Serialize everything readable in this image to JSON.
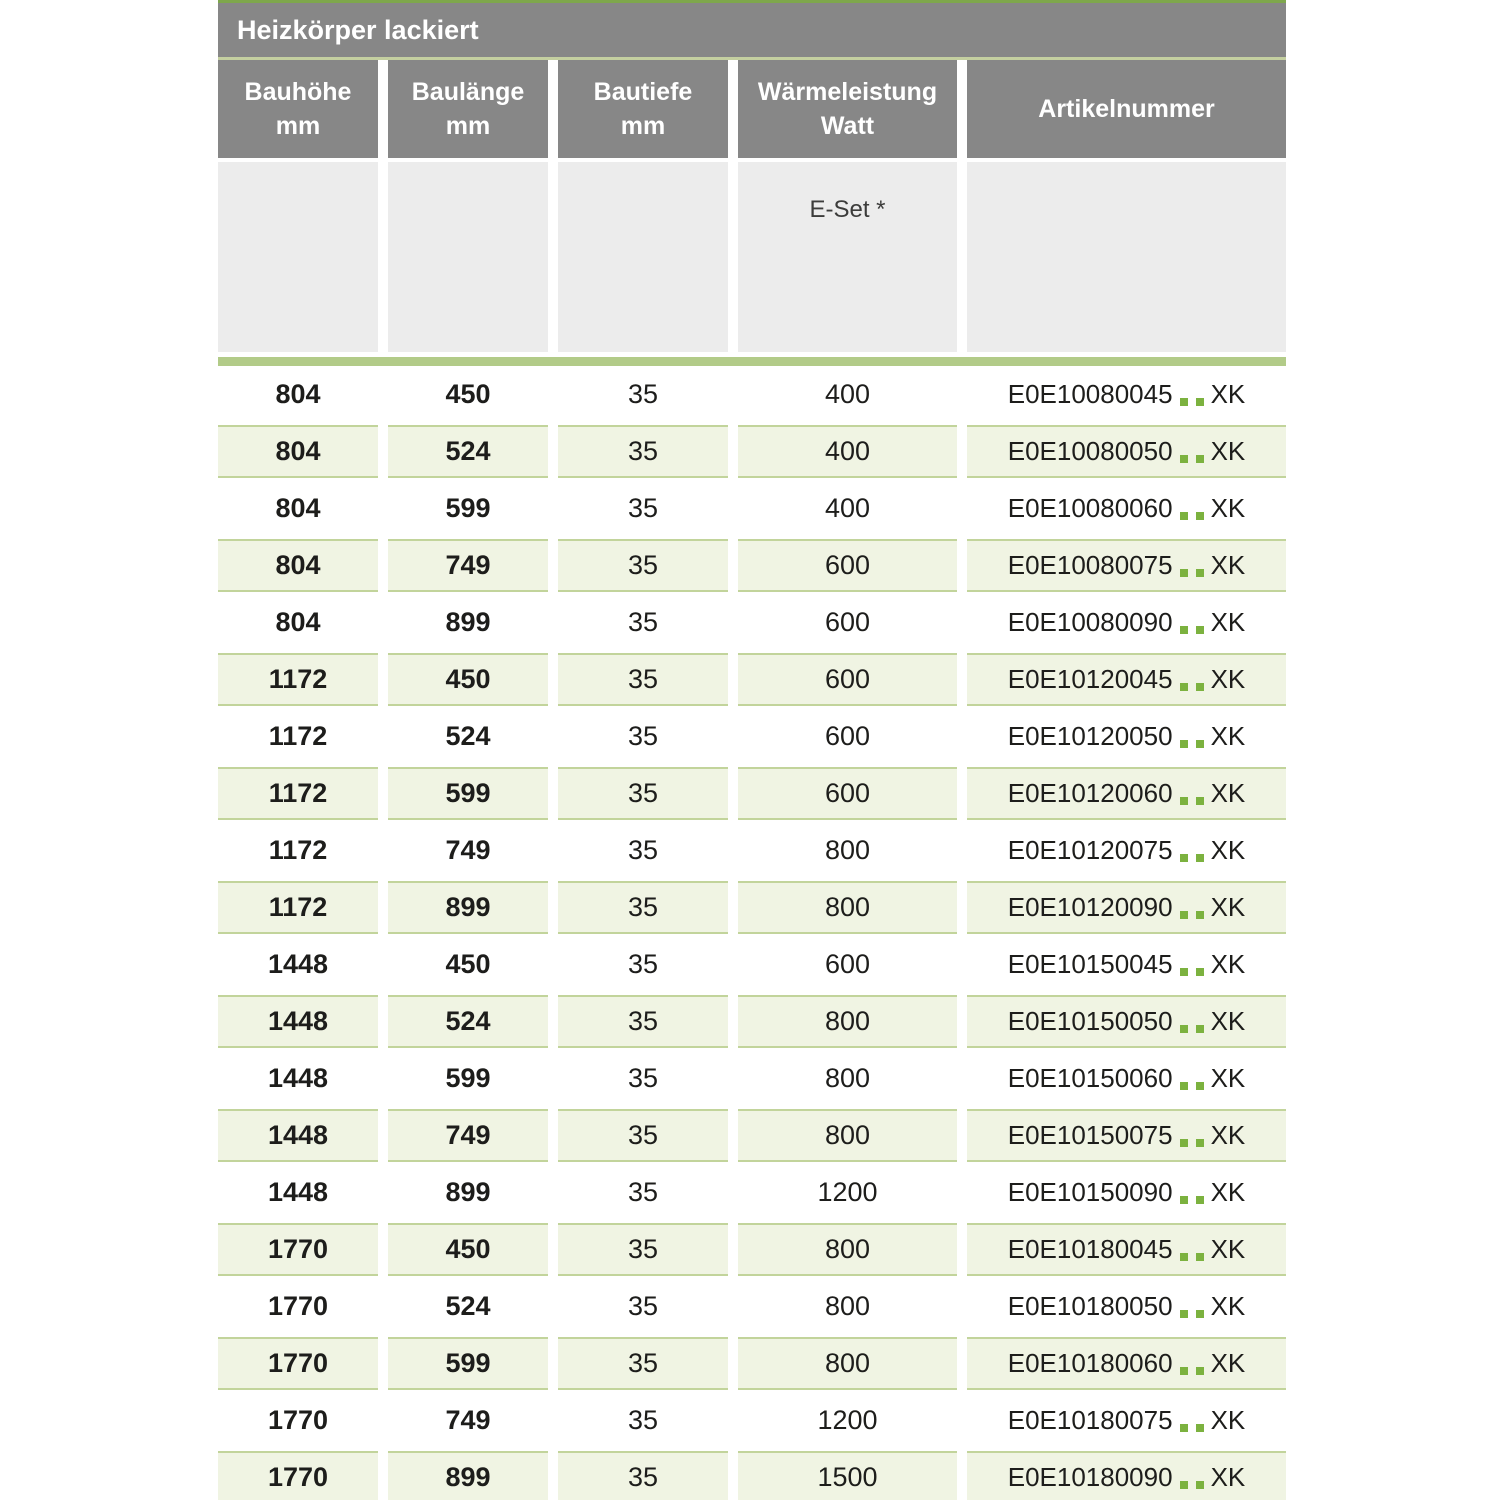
{
  "table": {
    "title": "Heizkörper lackiert",
    "columns": [
      {
        "id": "bauhoehe",
        "line1": "Bauhöhe",
        "line2": "mm"
      },
      {
        "id": "baulaenge",
        "line1": "Baulänge",
        "line2": "mm"
      },
      {
        "id": "bautiefe",
        "line1": "Bautiefe",
        "line2": "mm"
      },
      {
        "id": "waermeleistung",
        "line1": "Wärmeleistung",
        "line2": "Watt"
      },
      {
        "id": "artikelnummer",
        "line1": "Artikelnummer",
        "line2": ""
      }
    ],
    "subheader": {
      "note": "E-Set *"
    },
    "article_dots": "..",
    "rows": [
      {
        "bauhoehe": "804",
        "baulaenge": "450",
        "bautiefe": "35",
        "watt": "400",
        "artikel_prefix": "E0E10080045",
        "artikel_suffix": "XK"
      },
      {
        "bauhoehe": "804",
        "baulaenge": "524",
        "bautiefe": "35",
        "watt": "400",
        "artikel_prefix": "E0E10080050",
        "artikel_suffix": "XK"
      },
      {
        "bauhoehe": "804",
        "baulaenge": "599",
        "bautiefe": "35",
        "watt": "400",
        "artikel_prefix": "E0E10080060",
        "artikel_suffix": "XK"
      },
      {
        "bauhoehe": "804",
        "baulaenge": "749",
        "bautiefe": "35",
        "watt": "600",
        "artikel_prefix": "E0E10080075",
        "artikel_suffix": "XK"
      },
      {
        "bauhoehe": "804",
        "baulaenge": "899",
        "bautiefe": "35",
        "watt": "600",
        "artikel_prefix": "E0E10080090",
        "artikel_suffix": "XK"
      },
      {
        "bauhoehe": "1172",
        "baulaenge": "450",
        "bautiefe": "35",
        "watt": "600",
        "artikel_prefix": "E0E10120045",
        "artikel_suffix": "XK"
      },
      {
        "bauhoehe": "1172",
        "baulaenge": "524",
        "bautiefe": "35",
        "watt": "600",
        "artikel_prefix": "E0E10120050",
        "artikel_suffix": "XK"
      },
      {
        "bauhoehe": "1172",
        "baulaenge": "599",
        "bautiefe": "35",
        "watt": "600",
        "artikel_prefix": "E0E10120060",
        "artikel_suffix": "XK"
      },
      {
        "bauhoehe": "1172",
        "baulaenge": "749",
        "bautiefe": "35",
        "watt": "800",
        "artikel_prefix": "E0E10120075",
        "artikel_suffix": "XK"
      },
      {
        "bauhoehe": "1172",
        "baulaenge": "899",
        "bautiefe": "35",
        "watt": "800",
        "artikel_prefix": "E0E10120090",
        "artikel_suffix": "XK"
      },
      {
        "bauhoehe": "1448",
        "baulaenge": "450",
        "bautiefe": "35",
        "watt": "600",
        "artikel_prefix": "E0E10150045",
        "artikel_suffix": "XK"
      },
      {
        "bauhoehe": "1448",
        "baulaenge": "524",
        "bautiefe": "35",
        "watt": "800",
        "artikel_prefix": "E0E10150050",
        "artikel_suffix": "XK"
      },
      {
        "bauhoehe": "1448",
        "baulaenge": "599",
        "bautiefe": "35",
        "watt": "800",
        "artikel_prefix": "E0E10150060",
        "artikel_suffix": "XK"
      },
      {
        "bauhoehe": "1448",
        "baulaenge": "749",
        "bautiefe": "35",
        "watt": "800",
        "artikel_prefix": "E0E10150075",
        "artikel_suffix": "XK"
      },
      {
        "bauhoehe": "1448",
        "baulaenge": "899",
        "bautiefe": "35",
        "watt": "1200",
        "artikel_prefix": "E0E10150090",
        "artikel_suffix": "XK"
      },
      {
        "bauhoehe": "1770",
        "baulaenge": "450",
        "bautiefe": "35",
        "watt": "800",
        "artikel_prefix": "E0E10180045",
        "artikel_suffix": "XK"
      },
      {
        "bauhoehe": "1770",
        "baulaenge": "524",
        "bautiefe": "35",
        "watt": "800",
        "artikel_prefix": "E0E10180050",
        "artikel_suffix": "XK"
      },
      {
        "bauhoehe": "1770",
        "baulaenge": "599",
        "bautiefe": "35",
        "watt": "800",
        "artikel_prefix": "E0E10180060",
        "artikel_suffix": "XK"
      },
      {
        "bauhoehe": "1770",
        "baulaenge": "749",
        "bautiefe": "35",
        "watt": "1200",
        "artikel_prefix": "E0E10180075",
        "artikel_suffix": "XK"
      },
      {
        "bauhoehe": "1770",
        "baulaenge": "899",
        "bautiefe": "35",
        "watt": "1500",
        "artikel_prefix": "E0E10180090",
        "artikel_suffix": "XK"
      }
    ]
  },
  "colors": {
    "header_gray": "#878787",
    "accent_green": "#7ea74c",
    "title_divider_pale_green": "#c4cfa0",
    "subheader_gray": "#ececec",
    "separator_green": "#b2cb88",
    "row_green_bg": "#f0f4e3",
    "row_green_border": "#c2d49b",
    "text_dark": "#1d1d1b",
    "dot_green": "#7cb23f",
    "header_text": "#ffffff"
  }
}
